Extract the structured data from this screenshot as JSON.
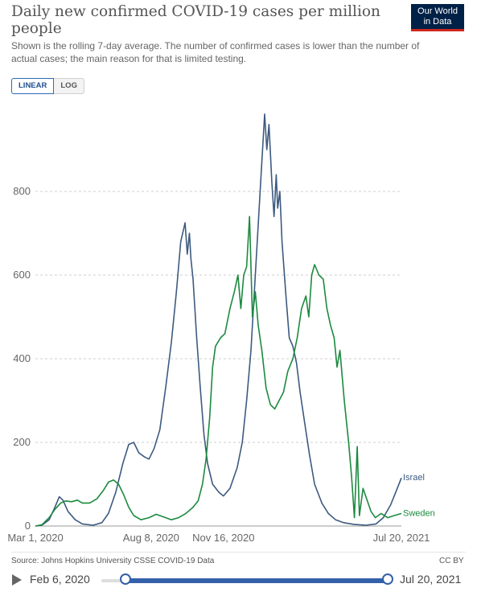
{
  "header": {
    "title": "Daily new confirmed COVID-19 cases per million people",
    "subtitle": "Shown is the rolling 7-day average. The number of confirmed cases is lower than the number of actual cases; the main reason for that is limited testing.",
    "logo_line1": "Our World",
    "logo_line2": "in Data"
  },
  "controls": {
    "linear_label": "LINEAR",
    "log_label": "LOG",
    "selected": "LINEAR"
  },
  "footer": {
    "source": "Source: Johns Hopkins University CSSE COVID-19 Data",
    "license": "CC BY"
  },
  "timeline": {
    "start_label": "Feb 6, 2020",
    "end_label": "Jul 20, 2021",
    "range_start_fraction": 0.043,
    "range_end_fraction": 1.0
  },
  "colors": {
    "Israel": "#3d5a80",
    "Sweden": "#1c8a3f",
    "grid": "#cfcfcf",
    "accent": "#3360a9"
  },
  "chart_data": {
    "type": "line",
    "x_tick_labels": [
      "Mar 1, 2020",
      "Aug 8, 2020",
      "Nov 16, 2020",
      "Jul 20, 2021"
    ],
    "x_tick_dates": [
      "2020-03-01",
      "2020-08-08",
      "2020-11-16",
      "2021-07-20"
    ],
    "y_ticks": [
      0,
      200,
      400,
      600,
      800
    ],
    "ylim": [
      0,
      1000
    ],
    "xlim": [
      "2020-03-01",
      "2021-07-20"
    ],
    "grid": "horizontal-dashed",
    "legend": "inline-right",
    "series": [
      {
        "name": "Israel",
        "points": [
          [
            "2020-03-01",
            0
          ],
          [
            "2020-03-10",
            2
          ],
          [
            "2020-03-20",
            15
          ],
          [
            "2020-03-28",
            45
          ],
          [
            "2020-04-03",
            70
          ],
          [
            "2020-04-08",
            62
          ],
          [
            "2020-04-15",
            35
          ],
          [
            "2020-04-25",
            15
          ],
          [
            "2020-05-05",
            5
          ],
          [
            "2020-05-20",
            2
          ],
          [
            "2020-06-01",
            8
          ],
          [
            "2020-06-10",
            30
          ],
          [
            "2020-06-20",
            80
          ],
          [
            "2020-06-30",
            150
          ],
          [
            "2020-07-08",
            195
          ],
          [
            "2020-07-15",
            200
          ],
          [
            "2020-07-22",
            175
          ],
          [
            "2020-07-30",
            165
          ],
          [
            "2020-08-05",
            160
          ],
          [
            "2020-08-12",
            185
          ],
          [
            "2020-08-20",
            230
          ],
          [
            "2020-08-28",
            330
          ],
          [
            "2020-09-05",
            440
          ],
          [
            "2020-09-12",
            560
          ],
          [
            "2020-09-18",
            680
          ],
          [
            "2020-09-24",
            725
          ],
          [
            "2020-09-27",
            650
          ],
          [
            "2020-09-30",
            700
          ],
          [
            "2020-10-02",
            640
          ],
          [
            "2020-10-05",
            590
          ],
          [
            "2020-10-10",
            450
          ],
          [
            "2020-10-15",
            330
          ],
          [
            "2020-10-20",
            220
          ],
          [
            "2020-10-25",
            150
          ],
          [
            "2020-11-01",
            100
          ],
          [
            "2020-11-10",
            80
          ],
          [
            "2020-11-16",
            72
          ],
          [
            "2020-11-25",
            90
          ],
          [
            "2020-12-05",
            140
          ],
          [
            "2020-12-12",
            200
          ],
          [
            "2020-12-18",
            300
          ],
          [
            "2020-12-24",
            420
          ],
          [
            "2020-12-30",
            600
          ],
          [
            "2021-01-04",
            750
          ],
          [
            "2021-01-08",
            870
          ],
          [
            "2021-01-12",
            985
          ],
          [
            "2021-01-15",
            900
          ],
          [
            "2021-01-18",
            960
          ],
          [
            "2021-01-22",
            820
          ],
          [
            "2021-01-25",
            740
          ],
          [
            "2021-01-28",
            840
          ],
          [
            "2021-01-30",
            760
          ],
          [
            "2021-02-02",
            800
          ],
          [
            "2021-02-05",
            680
          ],
          [
            "2021-02-10",
            560
          ],
          [
            "2021-02-15",
            450
          ],
          [
            "2021-02-20",
            430
          ],
          [
            "2021-02-25",
            390
          ],
          [
            "2021-03-02",
            320
          ],
          [
            "2021-03-08",
            250
          ],
          [
            "2021-03-15",
            170
          ],
          [
            "2021-03-22",
            100
          ],
          [
            "2021-04-01",
            55
          ],
          [
            "2021-04-10",
            30
          ],
          [
            "2021-04-20",
            15
          ],
          [
            "2021-05-01",
            8
          ],
          [
            "2021-05-15",
            4
          ],
          [
            "2021-06-01",
            2
          ],
          [
            "2021-06-15",
            5
          ],
          [
            "2021-06-25",
            20
          ],
          [
            "2021-07-05",
            50
          ],
          [
            "2021-07-12",
            80
          ],
          [
            "2021-07-20",
            115
          ]
        ]
      },
      {
        "name": "Sweden",
        "points": [
          [
            "2020-03-01",
            0
          ],
          [
            "2020-03-10",
            3
          ],
          [
            "2020-03-20",
            20
          ],
          [
            "2020-03-28",
            40
          ],
          [
            "2020-04-05",
            55
          ],
          [
            "2020-04-12",
            60
          ],
          [
            "2020-04-20",
            58
          ],
          [
            "2020-04-28",
            62
          ],
          [
            "2020-05-05",
            55
          ],
          [
            "2020-05-15",
            55
          ],
          [
            "2020-05-25",
            65
          ],
          [
            "2020-06-03",
            85
          ],
          [
            "2020-06-10",
            105
          ],
          [
            "2020-06-17",
            110
          ],
          [
            "2020-06-24",
            100
          ],
          [
            "2020-07-01",
            75
          ],
          [
            "2020-07-08",
            45
          ],
          [
            "2020-07-15",
            25
          ],
          [
            "2020-07-25",
            15
          ],
          [
            "2020-08-05",
            20
          ],
          [
            "2020-08-15",
            28
          ],
          [
            "2020-08-25",
            22
          ],
          [
            "2020-09-05",
            15
          ],
          [
            "2020-09-15",
            20
          ],
          [
            "2020-09-25",
            30
          ],
          [
            "2020-10-05",
            45
          ],
          [
            "2020-10-12",
            60
          ],
          [
            "2020-10-18",
            100
          ],
          [
            "2020-10-23",
            160
          ],
          [
            "2020-10-28",
            260
          ],
          [
            "2020-11-01",
            380
          ],
          [
            "2020-11-05",
            430
          ],
          [
            "2020-11-12",
            450
          ],
          [
            "2020-11-18",
            460
          ],
          [
            "2020-11-25",
            520
          ],
          [
            "2020-12-01",
            560
          ],
          [
            "2020-12-06",
            600
          ],
          [
            "2020-12-10",
            520
          ],
          [
            "2020-12-14",
            600
          ],
          [
            "2020-12-18",
            620
          ],
          [
            "2020-12-22",
            740
          ],
          [
            "2020-12-26",
            500
          ],
          [
            "2020-12-30",
            560
          ],
          [
            "2021-01-03",
            480
          ],
          [
            "2021-01-08",
            420
          ],
          [
            "2021-01-14",
            330
          ],
          [
            "2021-01-20",
            290
          ],
          [
            "2021-01-26",
            280
          ],
          [
            "2021-02-01",
            300
          ],
          [
            "2021-02-07",
            320
          ],
          [
            "2021-02-13",
            370
          ],
          [
            "2021-02-20",
            400
          ],
          [
            "2021-02-26",
            450
          ],
          [
            "2021-03-04",
            520
          ],
          [
            "2021-03-10",
            550
          ],
          [
            "2021-03-14",
            500
          ],
          [
            "2021-03-18",
            600
          ],
          [
            "2021-03-22",
            625
          ],
          [
            "2021-03-28",
            600
          ],
          [
            "2021-04-03",
            590
          ],
          [
            "2021-04-08",
            520
          ],
          [
            "2021-04-13",
            480
          ],
          [
            "2021-04-18",
            450
          ],
          [
            "2021-04-22",
            380
          ],
          [
            "2021-04-26",
            420
          ],
          [
            "2021-05-02",
            300
          ],
          [
            "2021-05-08",
            200
          ],
          [
            "2021-05-12",
            120
          ],
          [
            "2021-05-16",
            20
          ],
          [
            "2021-05-20",
            190
          ],
          [
            "2021-05-23",
            25
          ],
          [
            "2021-05-28",
            90
          ],
          [
            "2021-06-03",
            60
          ],
          [
            "2021-06-08",
            35
          ],
          [
            "2021-06-14",
            20
          ],
          [
            "2021-06-22",
            30
          ],
          [
            "2021-07-01",
            20
          ],
          [
            "2021-07-10",
            25
          ],
          [
            "2021-07-20",
            30
          ]
        ]
      }
    ]
  }
}
